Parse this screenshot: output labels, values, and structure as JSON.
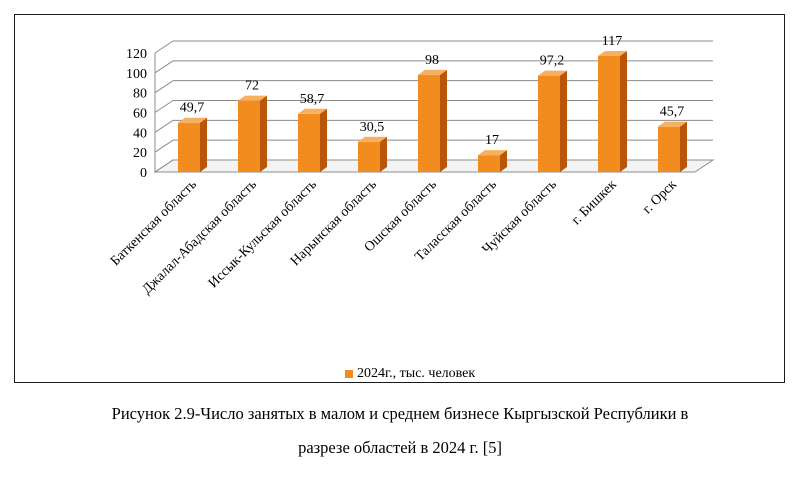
{
  "chart_data": {
    "type": "bar",
    "style": "3d-columns",
    "categories": [
      "Баткенская область",
      "Джалал-Абадская область",
      "Иссык-Кульская область",
      "Нарынская область",
      "Ошская область",
      "Таласская область",
      "Чуйская область",
      "г. Бишкек",
      "г. Орск"
    ],
    "series": [
      {
        "name": "2024г., тыс. человек",
        "values": [
          49.7,
          72,
          58.7,
          30.5,
          98,
          17,
          97.2,
          117,
          45.7
        ]
      }
    ],
    "data_labels": [
      "49,7",
      "72",
      "58,7",
      "30,5",
      "98",
      "17",
      "97,2",
      "117",
      "45,7"
    ],
    "y_ticks": [
      "0",
      "20",
      "40",
      "60",
      "80",
      "100",
      "120"
    ],
    "ylim": [
      0,
      120
    ],
    "grid": true,
    "legend_position": "bottom",
    "colors": {
      "bar_front": "#f28c1e",
      "bar_side": "#b9560a",
      "bar_top": "#f7b060",
      "grid": "#8c8c8c"
    }
  },
  "caption": {
    "line1": "Рисунок 2.9-Число занятых в малом и среднем бизнесе Кыргызской Республики в",
    "line2": "разрезе областей в 2024 г. [5]"
  }
}
